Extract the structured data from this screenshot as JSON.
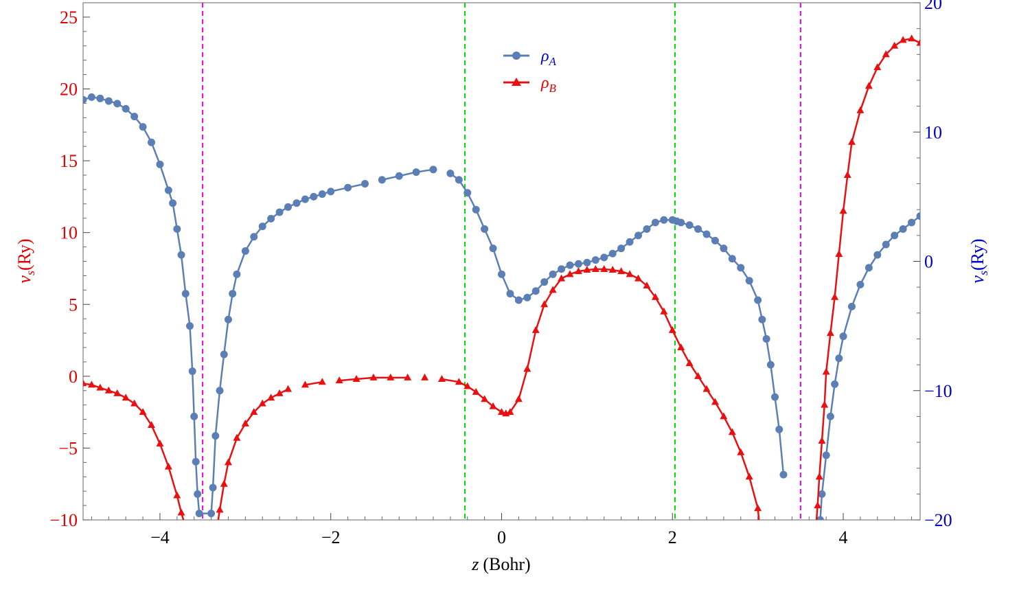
{
  "chart_data": {
    "type": "line",
    "xlabel_var": "z",
    "xlabel_unit": "(Bohr)",
    "ylabel_left_var": "v",
    "ylabel_left_sub": "s",
    "ylabel_left_unit": "(Ry)",
    "ylabel_right_var": "v",
    "ylabel_right_sub": "s",
    "ylabel_right_unit": "(Ry)",
    "xlim": [
      -4.9,
      4.9
    ],
    "ylim_left": [
      -10,
      26
    ],
    "ylim_right": [
      -20,
      20
    ],
    "xticks": [
      -4,
      -2,
      0,
      2,
      4
    ],
    "yticks_left": [
      -10,
      -5,
      0,
      5,
      10,
      15,
      20,
      25
    ],
    "yticks_right": [
      -20,
      -10,
      0,
      10,
      20
    ],
    "vlines": [
      {
        "x": -3.5,
        "color": "#e600e6",
        "style": "dashed"
      },
      {
        "x": -0.43,
        "color": "#00dd00",
        "style": "dashed"
      },
      {
        "x": 2.03,
        "color": "#00dd00",
        "style": "dashed"
      },
      {
        "x": 3.5,
        "color": "#e600e6",
        "style": "dashed"
      }
    ],
    "legend_position": "top-center",
    "colors": {
      "left_axis": "#e00000",
      "right_axis": "#0000cc",
      "series_a": "#5b7fb5",
      "series_b": "#e81010"
    },
    "series": [
      {
        "name_base": "ρ",
        "name_sub": "A",
        "axis": "right",
        "marker": "circle",
        "x": [
          -4.9,
          -4.8,
          -4.7,
          -4.6,
          -4.5,
          -4.4,
          -4.3,
          -4.2,
          -4.1,
          -4.0,
          -3.9,
          -3.85,
          -3.8,
          -3.75,
          -3.7,
          -3.65,
          -3.62,
          -3.6,
          -3.58,
          -3.56,
          -3.54,
          -3.4,
          -3.38,
          -3.35,
          -3.3,
          -3.25,
          -3.2,
          -3.15,
          -3.1,
          -3.0,
          -2.9,
          -2.8,
          -2.7,
          -2.6,
          -2.5,
          -2.4,
          -2.3,
          -2.2,
          -2.1,
          -2.0,
          -1.8,
          -1.6,
          -1.4,
          -1.2,
          -1.0,
          -0.8,
          -0.6,
          -0.5,
          -0.4,
          -0.3,
          -0.2,
          -0.1,
          0.0,
          0.1,
          0.2,
          0.3,
          0.4,
          0.5,
          0.6,
          0.7,
          0.8,
          0.9,
          1.0,
          1.1,
          1.2,
          1.3,
          1.4,
          1.5,
          1.6,
          1.7,
          1.8,
          1.9,
          2.0,
          2.05,
          2.1,
          2.2,
          2.3,
          2.4,
          2.5,
          2.6,
          2.7,
          2.8,
          2.9,
          3.0,
          3.05,
          3.1,
          3.15,
          3.2,
          3.25,
          3.3,
          3.73,
          3.75,
          3.8,
          3.85,
          3.9,
          3.95,
          4.0,
          4.1,
          4.2,
          4.3,
          4.4,
          4.5,
          4.6,
          4.7,
          4.8,
          4.9
        ],
        "values": [
          12.5,
          12.7,
          12.6,
          12.4,
          12.2,
          11.8,
          11.2,
          10.4,
          9.2,
          7.5,
          5.5,
          4.5,
          2.5,
          0.5,
          -2.5,
          -5.0,
          -8.5,
          -12.0,
          -15.5,
          -18.0,
          -19.5,
          -19.5,
          -17.5,
          -13.5,
          -10.0,
          -7.2,
          -4.5,
          -2.5,
          -1.0,
          0.8,
          1.9,
          2.7,
          3.3,
          3.8,
          4.2,
          4.5,
          4.8,
          5.0,
          5.2,
          5.4,
          5.7,
          6.0,
          6.3,
          6.6,
          6.9,
          7.1,
          6.8,
          6.3,
          5.3,
          4.0,
          2.5,
          1.0,
          -1.0,
          -2.5,
          -3.0,
          -2.8,
          -2.3,
          -1.6,
          -1.0,
          -0.6,
          -0.3,
          -0.2,
          -0.1,
          0.1,
          0.3,
          0.6,
          1.0,
          1.5,
          2.0,
          2.5,
          3.0,
          3.2,
          3.2,
          3.1,
          3.0,
          2.8,
          2.5,
          2.1,
          1.6,
          1.0,
          0.2,
          -0.5,
          -1.5,
          -3.0,
          -4.5,
          -6.0,
          -8.0,
          -10.5,
          -13.0,
          -16.5,
          -20.0,
          -18.0,
          -15.0,
          -12.0,
          -9.5,
          -7.5,
          -5.8,
          -3.5,
          -1.8,
          -0.5,
          0.5,
          1.3,
          2.0,
          2.5,
          3.0,
          3.5
        ]
      },
      {
        "name_base": "ρ",
        "name_sub": "B",
        "axis": "left",
        "marker": "triangle",
        "x": [
          -4.9,
          -4.8,
          -4.7,
          -4.6,
          -4.5,
          -4.4,
          -4.3,
          -4.2,
          -4.1,
          -4.0,
          -3.9,
          -3.8,
          -3.75,
          -3.7,
          -3.68,
          -3.33,
          -3.3,
          -3.25,
          -3.2,
          -3.1,
          -3.0,
          -2.9,
          -2.8,
          -2.7,
          -2.6,
          -2.5,
          -2.3,
          -2.1,
          -1.9,
          -1.7,
          -1.5,
          -1.3,
          -1.1,
          -0.9,
          -0.7,
          -0.5,
          -0.4,
          -0.3,
          -0.2,
          -0.1,
          0.0,
          0.05,
          0.1,
          0.2,
          0.3,
          0.4,
          0.5,
          0.6,
          0.7,
          0.8,
          0.9,
          1.0,
          1.1,
          1.2,
          1.3,
          1.4,
          1.5,
          1.6,
          1.7,
          1.8,
          1.9,
          2.0,
          2.1,
          2.2,
          2.3,
          2.4,
          2.5,
          2.6,
          2.7,
          2.8,
          2.9,
          3.0,
          3.02,
          3.68,
          3.7,
          3.72,
          3.75,
          3.78,
          3.8,
          3.85,
          3.9,
          3.95,
          4.0,
          4.05,
          4.1,
          4.2,
          4.3,
          4.4,
          4.5,
          4.6,
          4.7,
          4.8,
          4.9
        ],
        "values": [
          -0.5,
          -0.6,
          -0.8,
          -1.0,
          -1.2,
          -1.5,
          -1.9,
          -2.5,
          -3.4,
          -4.7,
          -6.3,
          -8.3,
          -9.5,
          -10.5,
          -10.5,
          -10.5,
          -9.3,
          -7.5,
          -6.0,
          -4.3,
          -3.3,
          -2.5,
          -1.9,
          -1.5,
          -1.2,
          -0.9,
          -0.6,
          -0.4,
          -0.3,
          -0.2,
          -0.1,
          -0.1,
          -0.1,
          -0.1,
          -0.2,
          -0.4,
          -0.7,
          -1.1,
          -1.6,
          -2.1,
          -2.5,
          -2.6,
          -2.5,
          -1.6,
          0.5,
          3.2,
          5.0,
          6.0,
          6.8,
          7.1,
          7.3,
          7.4,
          7.45,
          7.45,
          7.4,
          7.3,
          7.1,
          6.8,
          6.3,
          5.5,
          4.5,
          3.2,
          2.0,
          0.9,
          0.0,
          -0.9,
          -1.8,
          -2.8,
          -3.9,
          -5.3,
          -7.0,
          -9.2,
          -10.5,
          -10.5,
          -9.0,
          -7.0,
          -4.5,
          -2.0,
          0.3,
          3.0,
          5.5,
          8.5,
          11.5,
          14.0,
          16.3,
          18.5,
          20.2,
          21.5,
          22.4,
          23.0,
          23.4,
          23.5,
          23.2
        ]
      }
    ]
  }
}
